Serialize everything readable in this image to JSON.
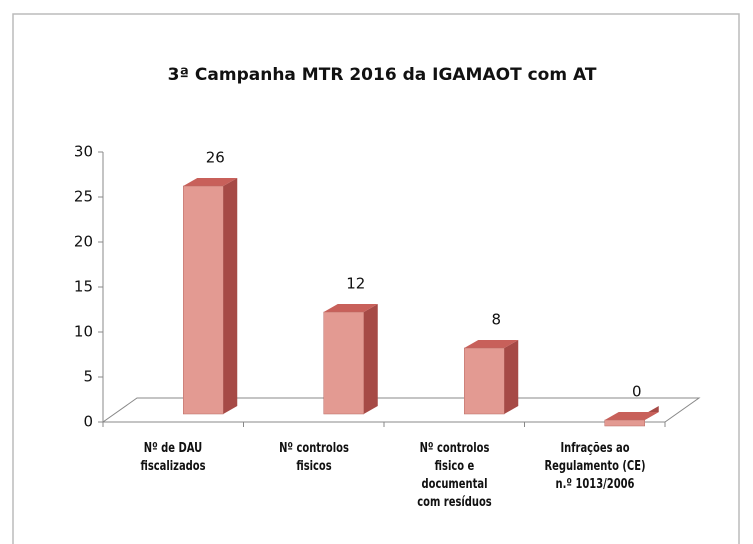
{
  "chart_data": {
    "type": "bar3d",
    "title": "3ª Campanha MTR 2016 da IGAMAOT com AT",
    "categories": [
      "Nº de DAU fiscalizados",
      "Nº controlos fisicos",
      "Nº controlos fisico e documental com resíduos",
      "Infrações ao Regulamento (CE) n.º 1013/2006"
    ],
    "values": [
      26,
      12,
      8,
      0
    ],
    "color": "#e39a92",
    "ylim": [
      0,
      30
    ],
    "yticks": [
      0,
      5,
      10,
      15,
      20,
      25,
      30
    ],
    "grid": false
  }
}
